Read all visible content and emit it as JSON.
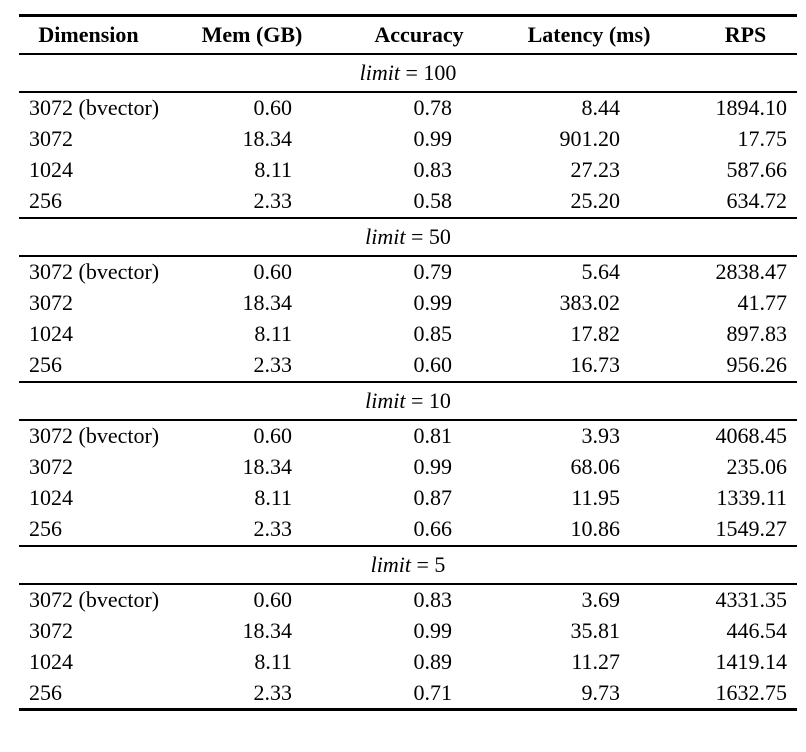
{
  "colors": {
    "background": "#ffffff",
    "rule": "#000000",
    "text": "#000000"
  },
  "table": {
    "columns": [
      "Dimension",
      "Mem (GB)",
      "Accuracy",
      "Latency (ms)",
      "RPS"
    ],
    "sections": [
      {
        "limit_word": "limit",
        "limit_rest": "= 100",
        "rows": [
          [
            "3072 (bvector)",
            "0.60",
            "0.78",
            "8.44",
            "1894.10"
          ],
          [
            "3072",
            "18.34",
            "0.99",
            "901.20",
            "17.75"
          ],
          [
            "1024",
            "8.11",
            "0.83",
            "27.23",
            "587.66"
          ],
          [
            "256",
            "2.33",
            "0.58",
            "25.20",
            "634.72"
          ]
        ]
      },
      {
        "limit_word": "limit",
        "limit_rest": "= 50",
        "rows": [
          [
            "3072 (bvector)",
            "0.60",
            "0.79",
            "5.64",
            "2838.47"
          ],
          [
            "3072",
            "18.34",
            "0.99",
            "383.02",
            "41.77"
          ],
          [
            "1024",
            "8.11",
            "0.85",
            "17.82",
            "897.83"
          ],
          [
            "256",
            "2.33",
            "0.60",
            "16.73",
            "956.26"
          ]
        ]
      },
      {
        "limit_word": "limit",
        "limit_rest": "= 10",
        "rows": [
          [
            "3072 (bvector)",
            "0.60",
            "0.81",
            "3.93",
            "4068.45"
          ],
          [
            "3072",
            "18.34",
            "0.99",
            "68.06",
            "235.06"
          ],
          [
            "1024",
            "8.11",
            "0.87",
            "11.95",
            "1339.11"
          ],
          [
            "256",
            "2.33",
            "0.66",
            "10.86",
            "1549.27"
          ]
        ]
      },
      {
        "limit_word": "limit",
        "limit_rest": "= 5",
        "rows": [
          [
            "3072 (bvector)",
            "0.60",
            "0.83",
            "3.69",
            "4331.35"
          ],
          [
            "3072",
            "18.34",
            "0.99",
            "35.81",
            "446.54"
          ],
          [
            "1024",
            "8.11",
            "0.89",
            "11.27",
            "1419.14"
          ],
          [
            "256",
            "2.33",
            "0.71",
            "9.73",
            "1632.75"
          ]
        ]
      }
    ]
  }
}
